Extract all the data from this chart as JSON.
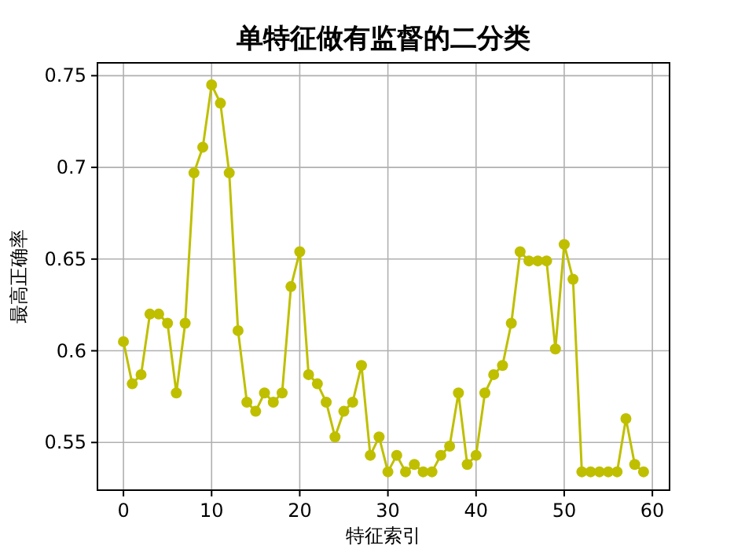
{
  "chart_data": {
    "type": "line",
    "title": "单特征做有监督的二分类",
    "xlabel": "特征索引",
    "ylabel": "最高正确率",
    "x": [
      0,
      1,
      2,
      3,
      4,
      5,
      6,
      7,
      8,
      9,
      10,
      11,
      12,
      13,
      14,
      15,
      16,
      17,
      18,
      19,
      20,
      21,
      22,
      23,
      24,
      25,
      26,
      27,
      28,
      29,
      30,
      31,
      32,
      33,
      34,
      35,
      36,
      37,
      38,
      39,
      40,
      41,
      42,
      43,
      44,
      45,
      46,
      47,
      48,
      49,
      50,
      51,
      52,
      53,
      54,
      55,
      56,
      57,
      58,
      59
    ],
    "series": [
      {
        "color": "#bfbf00",
        "values": [
          0.605,
          0.582,
          0.587,
          0.62,
          0.62,
          0.615,
          0.577,
          0.615,
          0.697,
          0.711,
          0.745,
          0.735,
          0.697,
          0.611,
          0.572,
          0.567,
          0.577,
          0.572,
          0.577,
          0.635,
          0.654,
          0.587,
          0.582,
          0.572,
          0.553,
          0.567,
          0.572,
          0.592,
          0.543,
          0.553,
          0.534,
          0.543,
          0.534,
          0.538,
          0.534,
          0.534,
          0.543,
          0.548,
          0.577,
          0.538,
          0.543,
          0.577,
          0.587,
          0.592,
          0.615,
          0.654,
          0.649,
          0.649,
          0.649,
          0.601,
          0.658,
          0.639,
          0.534,
          0.534,
          0.534,
          0.534,
          0.534,
          0.563,
          0.538,
          0.534
        ]
      }
    ],
    "xlim": [
      -2.95,
      61.95
    ],
    "ylim": [
      0.524,
      0.757
    ],
    "xticks": [
      0,
      10,
      20,
      30,
      40,
      50,
      60
    ],
    "yticks": [
      0.55,
      0.6,
      0.65,
      0.7,
      0.75
    ],
    "grid": true,
    "marker": "circle",
    "line_style": "solid"
  }
}
